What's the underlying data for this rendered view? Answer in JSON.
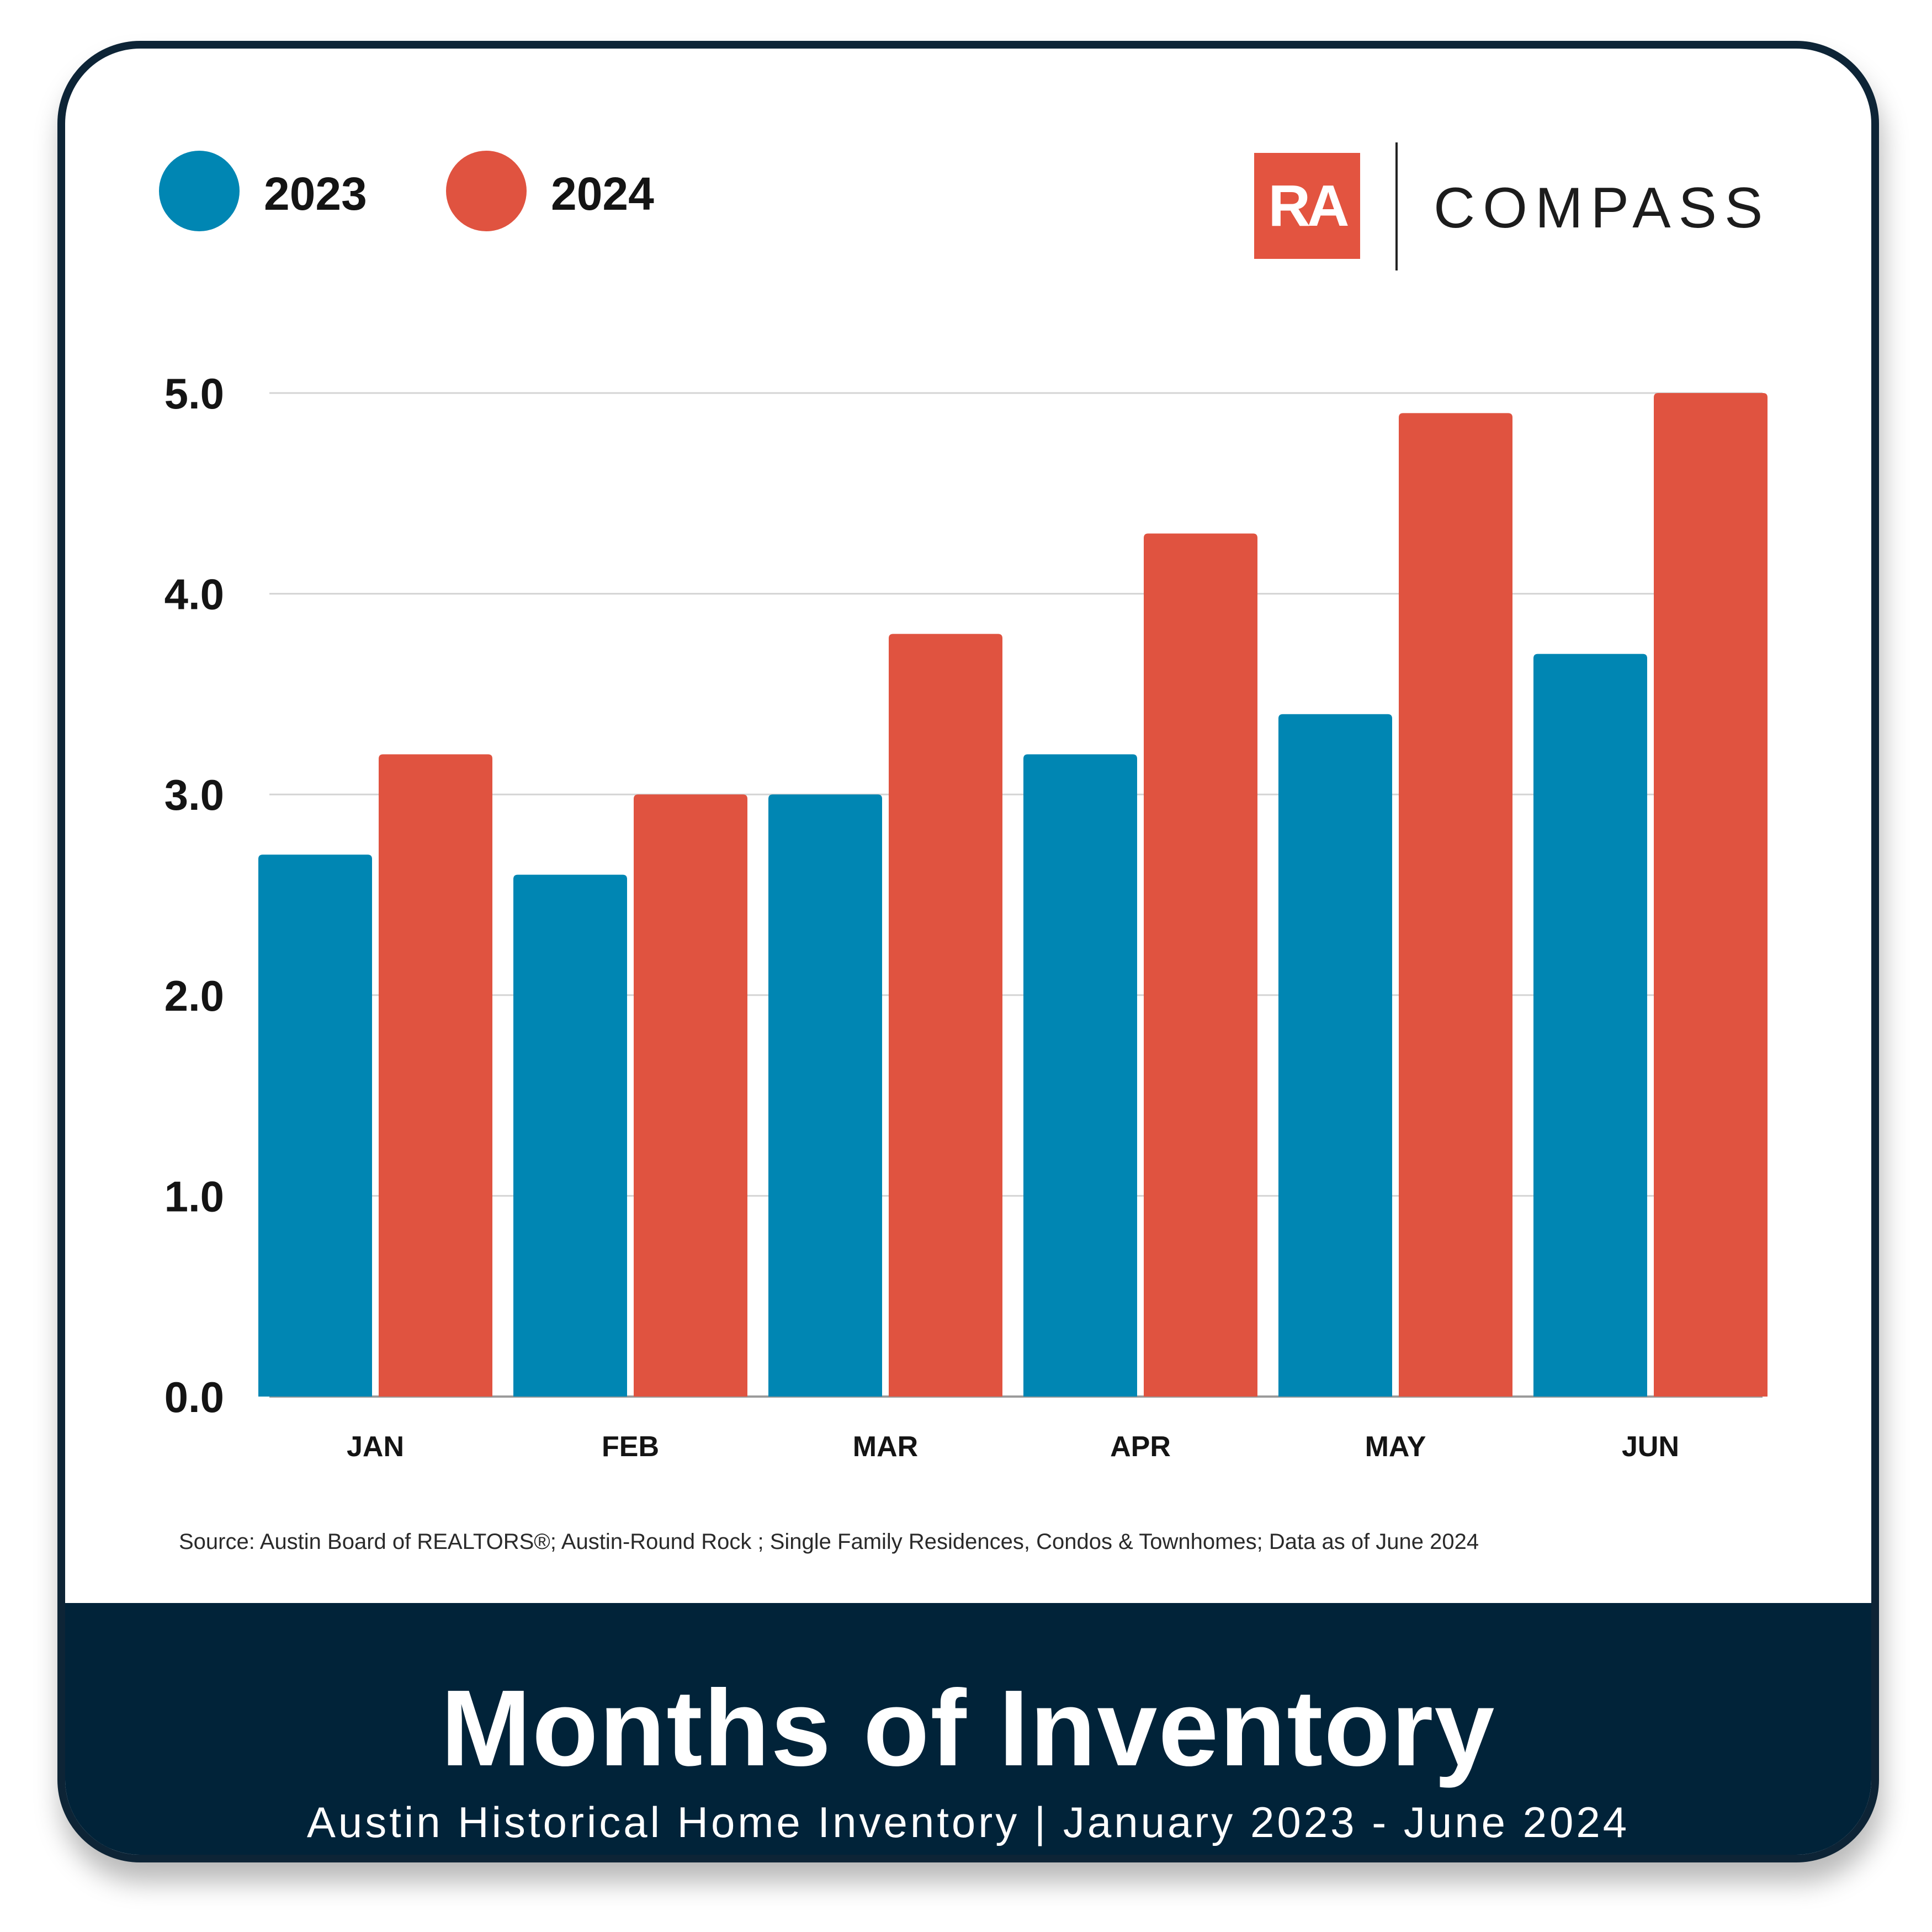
{
  "legend": [
    {
      "label": "2023",
      "color": "#0086b3"
    },
    {
      "label": "2024",
      "color": "#e05340"
    }
  ],
  "logo": {
    "ra_text": "RA",
    "ra_color": "#e35440",
    "compass_text": "COMPASS"
  },
  "chart_data": {
    "type": "bar",
    "title": "Months of Inventory",
    "subtitle": "Austin Historical Home Inventory | January 2023 - June 2024",
    "categories": [
      "JAN",
      "FEB",
      "MAR",
      "APR",
      "MAY",
      "JUN"
    ],
    "series": [
      {
        "name": "2023",
        "color": "#0086b3",
        "values": [
          2.7,
          2.6,
          3.0,
          3.2,
          3.4,
          3.7
        ]
      },
      {
        "name": "2024",
        "color": "#e05340",
        "values": [
          3.2,
          3.0,
          3.8,
          4.3,
          4.9,
          5.0
        ]
      }
    ],
    "yticks": [
      "0.0",
      "1.0",
      "2.0",
      "3.0",
      "4.0",
      "5.0"
    ],
    "ylim": [
      0,
      5
    ],
    "xlabel": "",
    "ylabel": "",
    "grid": true,
    "legend_position": "top-left"
  },
  "source": "Source: Austin Board of REALTORS®; Austin-Round Rock ; Single Family Residences, Condos & Townhomes; Data as of June 2024",
  "footer": {
    "title": "Months of Inventory",
    "subtitle": "Austin Historical Home Inventory | January 2023 - June 2024"
  }
}
